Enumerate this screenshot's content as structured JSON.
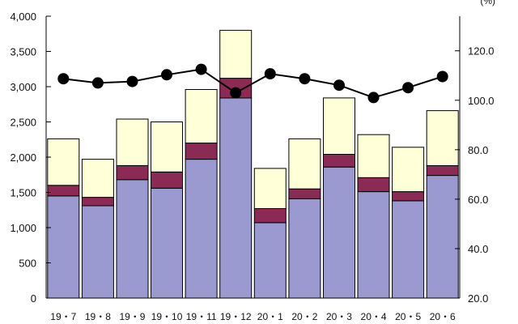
{
  "chart_data": {
    "type": "bar",
    "stacked": true,
    "categories": [
      "19・7",
      "19・8",
      "19・9",
      "19・10",
      "19・11",
      "19・12",
      "20・1",
      "20・2",
      "20・3",
      "20・4",
      "20・5",
      "20・6"
    ],
    "series": [
      {
        "values": [
          1450,
          1310,
          1680,
          1560,
          1970,
          2840,
          1070,
          1410,
          1860,
          1510,
          1380,
          1740
        ],
        "color": "#9a9ad0"
      },
      {
        "values": [
          150,
          120,
          200,
          230,
          230,
          280,
          200,
          140,
          180,
          200,
          130,
          140
        ],
        "color": "#8b2a55"
      },
      {
        "values": [
          660,
          540,
          660,
          710,
          760,
          680,
          570,
          710,
          800,
          610,
          630,
          780
        ],
        "color": "#ffffd8"
      }
    ],
    "line": {
      "values": [
        108.7,
        107.0,
        107.6,
        110.3,
        112.5,
        103.0,
        110.7,
        108.7,
        106.1,
        101.1,
        105.1,
        109.6
      ],
      "color": "#000000"
    },
    "y_left": {
      "ticks": [
        "0",
        "500",
        "1,000",
        "1,500",
        "2,000",
        "2,500",
        "3,000",
        "3,500",
        "4,000"
      ],
      "min": 0,
      "max": 4000
    },
    "y_right": {
      "ticks": [
        "20.0",
        "40.0",
        "60.0",
        "80.0",
        "100.0",
        "120.0"
      ],
      "min": 20,
      "max": 134,
      "unit": "(%)"
    },
    "grid": false,
    "legend": "none"
  }
}
